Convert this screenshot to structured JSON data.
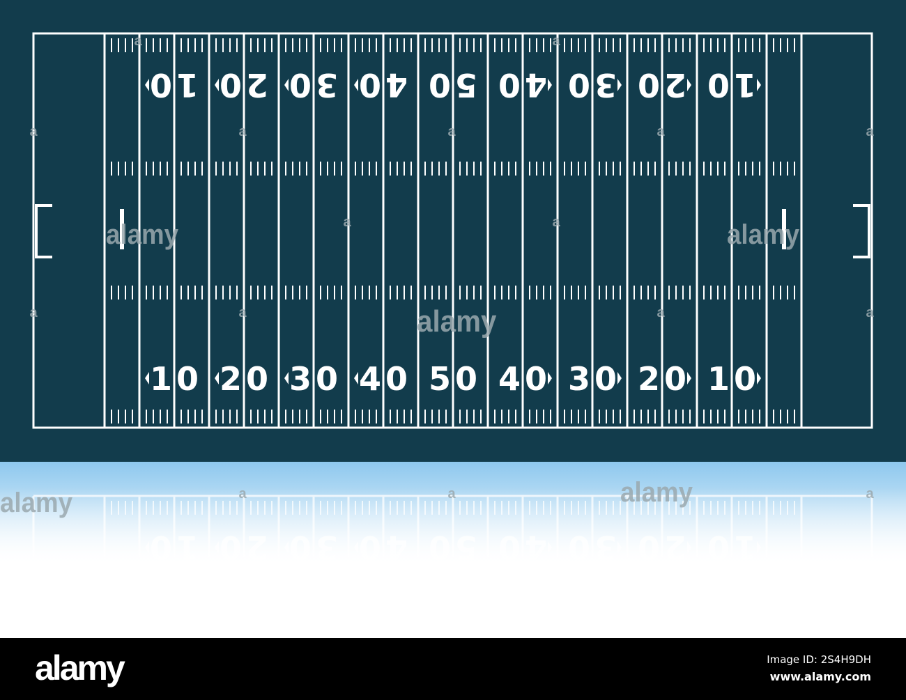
{
  "colors": {
    "field": "#123c4c",
    "lines": "#ffffff",
    "reflection_top": "#8ec8ee",
    "footer": "#000000",
    "watermark": "#9aa8ae"
  },
  "field": {
    "yard_numbers": [
      "10",
      "20",
      "30",
      "40",
      "50",
      "40",
      "30",
      "20",
      "10"
    ]
  },
  "watermark": {
    "text": "alamy"
  },
  "footer": {
    "logo": "alamy",
    "image_id": "Image ID: 2S4H9DH",
    "url": "www.alamy.com"
  }
}
